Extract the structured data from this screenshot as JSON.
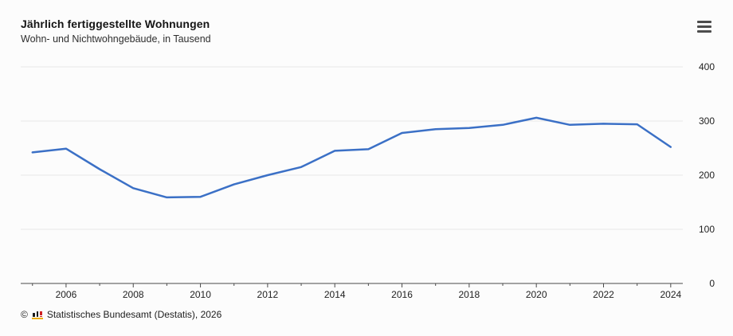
{
  "header": {
    "title": "Jährlich fertiggestellte Wohnungen",
    "subtitle": "Wohn- und Nichtwohngebäude, in Tausend",
    "menu_icon": "hamburger-menu"
  },
  "chart_data": {
    "type": "line",
    "title": "Jährlich fertiggestellte Wohnungen",
    "subtitle": "Wohn- und Nichtwohngebäude, in Tausend",
    "x": [
      2005,
      2006,
      2007,
      2008,
      2009,
      2010,
      2011,
      2012,
      2013,
      2014,
      2015,
      2016,
      2017,
      2018,
      2019,
      2020,
      2021,
      2022,
      2023,
      2024
    ],
    "values": [
      242,
      249,
      211,
      176,
      159,
      160,
      183,
      200,
      215,
      245,
      248,
      278,
      285,
      287,
      293,
      306,
      293,
      295,
      294,
      252
    ],
    "xlabel": "",
    "ylabel": "",
    "xlim": [
      2004.65,
      2024.36
    ],
    "ylim": [
      0,
      400
    ],
    "y_ticks": [
      0,
      100,
      200,
      300,
      400
    ],
    "x_labeled_ticks": [
      2006,
      2008,
      2010,
      2012,
      2014,
      2016,
      2018,
      2020,
      2022,
      2024
    ],
    "grid": true,
    "legend_position": "none",
    "y_axis_side": "right",
    "line_color": "#3b70c6",
    "grid_color": "#e8e8e8",
    "axis_color": "#4a4a4a"
  },
  "footer": {
    "copyright": "©",
    "source": "Statistisches Bundesamt (Destatis), 2026",
    "logo_icon": "destatis-bar-chart-logo",
    "logo_colors": {
      "bars": "#1a1a1a",
      "accent": "#cf2121",
      "underline": "#eead00"
    }
  }
}
